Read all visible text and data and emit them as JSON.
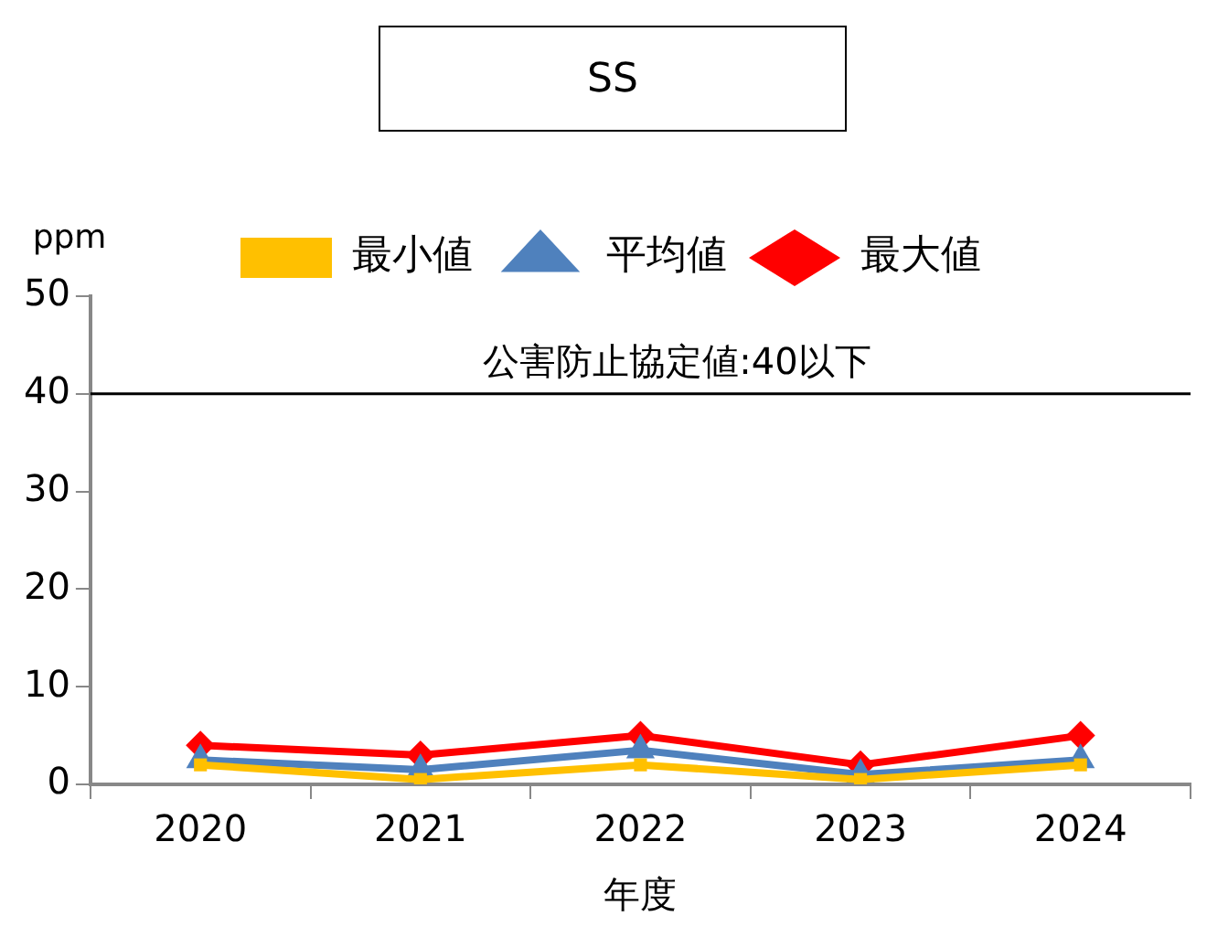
{
  "chart_data": {
    "type": "line",
    "title": "SS",
    "xlabel": "年度",
    "ylabel": "ppm",
    "categories": [
      "2020",
      "2021",
      "2022",
      "2023",
      "2024"
    ],
    "series": [
      {
        "name": "最小値",
        "color": "#ffc000",
        "marker": "square",
        "values": [
          2,
          0.5,
          2,
          0.5,
          2
        ]
      },
      {
        "name": "平均値",
        "color": "#4f81bd",
        "marker": "triangle",
        "values": [
          2.5,
          1.5,
          3.5,
          1,
          2.5
        ]
      },
      {
        "name": "最大値",
        "color": "#ff0000",
        "marker": "diamond",
        "values": [
          4,
          3,
          5,
          2,
          5
        ]
      }
    ],
    "ylim": [
      0,
      50
    ],
    "yticks": [
      0,
      10,
      20,
      30,
      40,
      50
    ],
    "grid": false,
    "legend": "top",
    "line_style": "solid",
    "ref_lines": [
      {
        "axis": "y",
        "value": 40,
        "label": "公害防止協定値:40以下",
        "color": "#000000"
      }
    ]
  }
}
